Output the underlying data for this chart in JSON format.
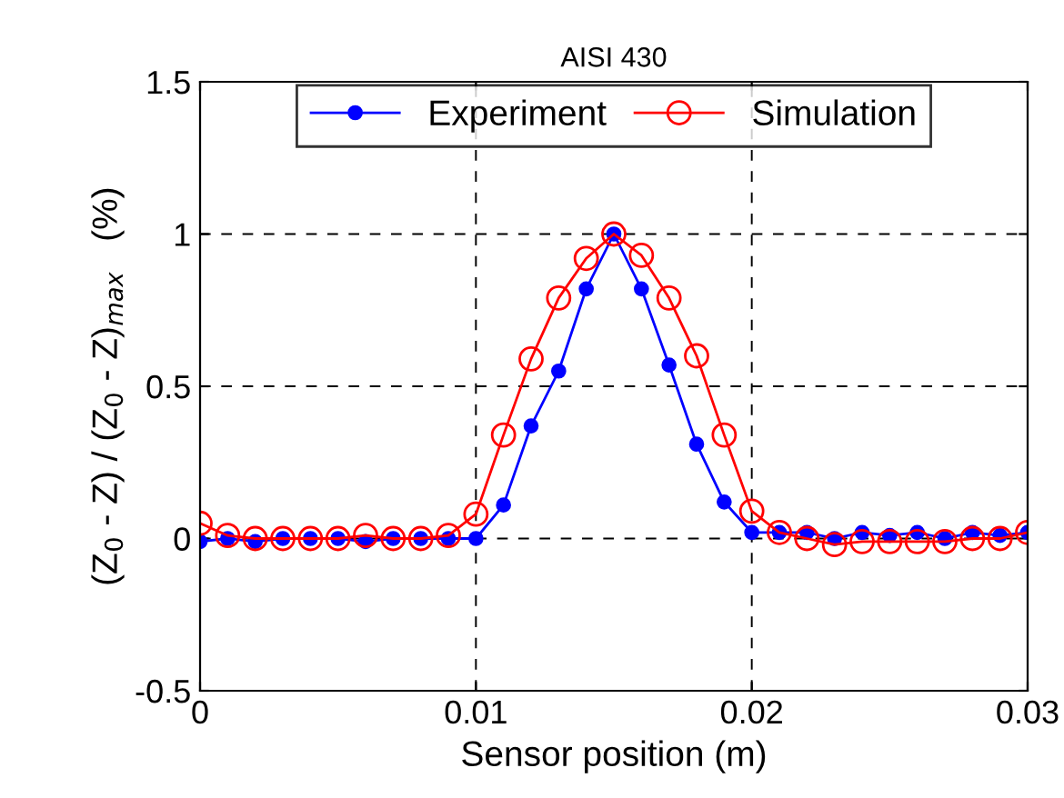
{
  "chart_data": {
    "type": "line",
    "title": "AISI 430",
    "xlabel": "Sensor position (m)",
    "ylabel": "(Z$_{0}$ - Z) / (Z$_{0}$ - Z)$_{max}$   (%)",
    "x": [
      0,
      0.001,
      0.002,
      0.003,
      0.004,
      0.005,
      0.006,
      0.007,
      0.008,
      0.009,
      0.01,
      0.011,
      0.012,
      0.013,
      0.014,
      0.015,
      0.016,
      0.017,
      0.018,
      0.019,
      0.02,
      0.021,
      0.022,
      0.023,
      0.024,
      0.025,
      0.026,
      0.027,
      0.028,
      0.029,
      0.03
    ],
    "series": [
      {
        "name": "Experiment",
        "color": "#0000ff",
        "marker": "circle",
        "values": [
          -0.01,
          0,
          -0.01,
          0,
          0,
          0,
          -0.01,
          0,
          0,
          0,
          0,
          0.11,
          0.37,
          0.55,
          0.82,
          1.0,
          0.82,
          0.57,
          0.31,
          0.12,
          0.02,
          0.02,
          0.02,
          0,
          0.02,
          0.01,
          0.02,
          0,
          0.02,
          0.01,
          0.02
        ]
      },
      {
        "name": "Simulation",
        "color": "#ff0000",
        "marker": "open_circle",
        "values": [
          0.05,
          0.01,
          0,
          0,
          0,
          0,
          0.01,
          0,
          0,
          0.01,
          0.08,
          0.34,
          0.59,
          0.79,
          0.92,
          1.0,
          0.93,
          0.79,
          0.6,
          0.34,
          0.09,
          0.02,
          0,
          -0.02,
          -0.01,
          -0.01,
          -0.01,
          -0.01,
          0,
          0,
          0.02
        ]
      }
    ],
    "xlim": [
      0,
      0.03
    ],
    "xticks": [
      0,
      0.01,
      0.02,
      0.03
    ],
    "ylim": [
      -0.5,
      1.5
    ],
    "yticks": [
      -0.5,
      0,
      0.5,
      1,
      1.5
    ],
    "grid": true,
    "legend": "top"
  }
}
